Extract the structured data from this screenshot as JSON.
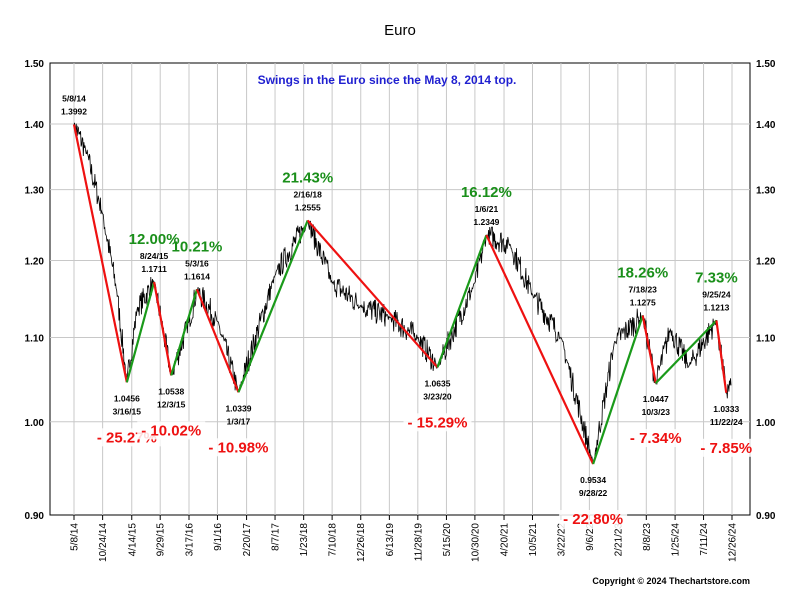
{
  "chart_data": {
    "type": "line",
    "title": "Euro",
    "subtitle": "Swings in the Euro since the May 8, 2014 top.",
    "copyright": "Copyright © 2024 Thechartstore.com",
    "y_axis": {
      "scale": "log",
      "ylim": [
        0.9,
        1.5
      ],
      "ticks": [
        "0.90",
        "1.00",
        "1.10",
        "1.20",
        "1.30",
        "1.40",
        "1.50"
      ],
      "tick_values": [
        0.9,
        1.0,
        1.1,
        1.2,
        1.3,
        1.4,
        1.5
      ],
      "grid": true,
      "labels_both_sides": true
    },
    "x_axis": {
      "ticks": [
        "5/8/14",
        "10/24/14",
        "4/14/15",
        "9/29/15",
        "3/17/16",
        "9/1/16",
        "2/20/17",
        "8/7/17",
        "1/23/18",
        "7/10/18",
        "12/26/18",
        "6/13/19",
        "11/28/19",
        "5/15/20",
        "10/30/20",
        "4/20/21",
        "10/5/21",
        "3/22/22",
        "9/6/22",
        "2/21/23",
        "8/8/23",
        "1/25/24",
        "7/11/24",
        "12/26/24"
      ],
      "grid": true
    },
    "swings": [
      {
        "date": "5/8/14",
        "value": 1.3992,
        "date_label": "5/8/14",
        "value_label": "1.3992",
        "label_side": "above"
      },
      {
        "date": "3/16/15",
        "value": 1.0456,
        "date_label": "3/16/15",
        "value_label": "1.0456",
        "label_side": "below"
      },
      {
        "date": "8/24/15",
        "value": 1.1711,
        "date_label": "8/24/15",
        "value_label": "1.1711",
        "label_side": "above"
      },
      {
        "date": "12/3/15",
        "value": 1.0538,
        "date_label": "12/3/15",
        "value_label": "1.0538",
        "label_side": "below"
      },
      {
        "date": "5/3/16",
        "value": 1.1614,
        "date_label": "5/3/16",
        "value_label": "1.1614",
        "label_side": "above"
      },
      {
        "date": "1/3/17",
        "value": 1.0339,
        "date_label": "1/3/17",
        "value_label": "1.0339",
        "label_side": "below"
      },
      {
        "date": "2/16/18",
        "value": 1.2555,
        "date_label": "2/16/18",
        "value_label": "1.2555",
        "label_side": "above"
      },
      {
        "date": "3/23/20",
        "value": 1.0635,
        "date_label": "3/23/20",
        "value_label": "1.0635",
        "label_side": "below"
      },
      {
        "date": "1/6/21",
        "value": 1.2349,
        "date_label": "1/6/21",
        "value_label": "1.2349",
        "label_side": "above"
      },
      {
        "date": "9/28/22",
        "value": 0.9534,
        "date_label": "9/28/22",
        "value_label": "0.9534",
        "label_side": "below"
      },
      {
        "date": "7/18/23",
        "value": 1.1275,
        "date_label": "7/18/23",
        "value_label": "1.1275",
        "label_side": "above"
      },
      {
        "date": "10/3/23",
        "value": 1.0447,
        "date_label": "10/3/23",
        "value_label": "1.0447",
        "label_side": "below"
      },
      {
        "date": "9/25/24",
        "value": 1.1213,
        "date_label": "9/25/24",
        "value_label": "1.1213",
        "label_side": "above"
      },
      {
        "date": "11/22/24",
        "value": 1.0333,
        "date_label": "11/22/24",
        "value_label": "1.0333",
        "label_side": "below"
      }
    ],
    "swing_changes": [
      {
        "label": "- 25.27%",
        "direction": "down"
      },
      {
        "label": "12.00%",
        "direction": "up"
      },
      {
        "label": "- 10.02%",
        "direction": "down"
      },
      {
        "label": "10.21%",
        "direction": "up"
      },
      {
        "label": "- 10.98%",
        "direction": "down"
      },
      {
        "label": "21.43%",
        "direction": "up"
      },
      {
        "label": "- 15.29%",
        "direction": "down"
      },
      {
        "label": "16.12%",
        "direction": "up"
      },
      {
        "label": "- 22.80%",
        "direction": "down"
      },
      {
        "label": "18.26%",
        "direction": "up"
      },
      {
        "label": "- 7.34%",
        "direction": "down"
      },
      {
        "label": "7.33%",
        "direction": "up"
      },
      {
        "label": "- 7.85%",
        "direction": "down"
      }
    ],
    "price_series": [
      {
        "date": "5/8/14",
        "value": 1.3992
      },
      {
        "date": "7/15/14",
        "value": 1.36
      },
      {
        "date": "10/24/14",
        "value": 1.265
      },
      {
        "date": "1/15/15",
        "value": 1.16
      },
      {
        "date": "3/16/15",
        "value": 1.0456
      },
      {
        "date": "5/15/15",
        "value": 1.135
      },
      {
        "date": "8/24/15",
        "value": 1.1711
      },
      {
        "date": "12/3/15",
        "value": 1.0538
      },
      {
        "date": "3/17/16",
        "value": 1.12
      },
      {
        "date": "5/3/16",
        "value": 1.1614
      },
      {
        "date": "9/1/16",
        "value": 1.12
      },
      {
        "date": "1/3/17",
        "value": 1.0339
      },
      {
        "date": "8/7/17",
        "value": 1.18
      },
      {
        "date": "2/16/18",
        "value": 1.2555
      },
      {
        "date": "7/10/18",
        "value": 1.17
      },
      {
        "date": "12/26/18",
        "value": 1.14
      },
      {
        "date": "6/13/19",
        "value": 1.125
      },
      {
        "date": "11/28/19",
        "value": 1.1
      },
      {
        "date": "3/23/20",
        "value": 1.0635
      },
      {
        "date": "10/30/20",
        "value": 1.17
      },
      {
        "date": "1/6/21",
        "value": 1.2349
      },
      {
        "date": "5/25/21",
        "value": 1.222
      },
      {
        "date": "10/5/21",
        "value": 1.155
      },
      {
        "date": "3/22/22",
        "value": 1.1
      },
      {
        "date": "9/28/22",
        "value": 0.9534
      },
      {
        "date": "2/2/23",
        "value": 1.095
      },
      {
        "date": "7/18/23",
        "value": 1.1275
      },
      {
        "date": "10/3/23",
        "value": 1.0447
      },
      {
        "date": "12/28/23",
        "value": 1.11
      },
      {
        "date": "4/16/24",
        "value": 1.065
      },
      {
        "date": "9/25/24",
        "value": 1.1213
      },
      {
        "date": "11/22/24",
        "value": 1.0333
      },
      {
        "date": "12/20/24",
        "value": 1.042
      }
    ],
    "colors": {
      "price": "#000000",
      "up_swing": "#1a9a1a",
      "down_swing": "#ee1111",
      "up_label": "#1a8f1a",
      "down_label": "#ee1111",
      "subtitle": "#1f1fd0",
      "grid": "#c8c8c8"
    }
  }
}
